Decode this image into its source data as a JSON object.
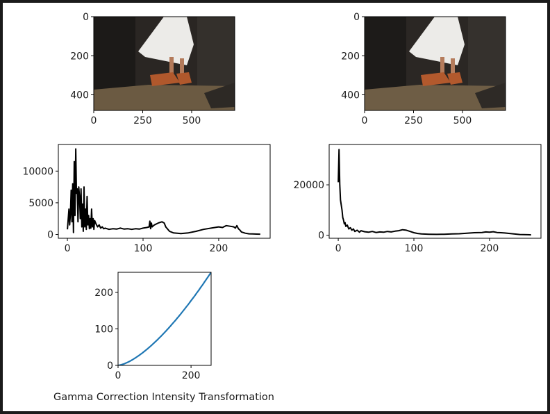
{
  "figure": {
    "caption": "Gamma Correction Intensity Transformation"
  },
  "colors": {
    "histogram_line": "#000000",
    "curve_line": "#1f77b4",
    "axes": "#000000",
    "photo_rock": "#2a2623",
    "photo_dress": "#ecebe8",
    "photo_sand": "#6b5a42",
    "photo_shoe": "#b0582c"
  },
  "chart_data": [
    {
      "type": "image",
      "x_ticks": [
        "0",
        "250",
        "500"
      ],
      "y_ticks": [
        "0",
        "200",
        "400"
      ],
      "xlim": [
        0,
        720
      ],
      "ylim": [
        480,
        0
      ]
    },
    {
      "type": "image",
      "x_ticks": [
        "0",
        "250",
        "500"
      ],
      "y_ticks": [
        "0",
        "200",
        "400"
      ],
      "xlim": [
        0,
        720
      ],
      "ylim": [
        480,
        0
      ]
    },
    {
      "type": "line",
      "xlim": [
        -12,
        268
      ],
      "ylim": [
        -600,
        14200
      ],
      "x_ticks": [
        0,
        100,
        200
      ],
      "y_ticks": [
        0,
        5000,
        10000
      ],
      "x_tick_labels": [
        "0",
        "100",
        "200"
      ],
      "y_tick_labels": [
        "0",
        "5000",
        "10000"
      ],
      "x": [
        0,
        2,
        3,
        4,
        5,
        6,
        7,
        8,
        9,
        10,
        11,
        12,
        13,
        14,
        15,
        16,
        17,
        18,
        19,
        20,
        21,
        22,
        23,
        24,
        25,
        26,
        27,
        28,
        29,
        30,
        31,
        32,
        33,
        34,
        35,
        36,
        38,
        40,
        42,
        44,
        46,
        48,
        50,
        55,
        60,
        65,
        70,
        75,
        80,
        85,
        90,
        95,
        100,
        105,
        108,
        109,
        110,
        111,
        112,
        115,
        120,
        125,
        128,
        130,
        135,
        140,
        150,
        160,
        170,
        180,
        190,
        200,
        205,
        210,
        215,
        220,
        222,
        224,
        226,
        228,
        230,
        235,
        240,
        245,
        250,
        255
      ],
      "y": [
        800,
        4000,
        1500,
        3200,
        7000,
        2000,
        8000,
        300,
        11500,
        3000,
        13500,
        6500,
        7200,
        2000,
        7500,
        6000,
        2500,
        7200,
        1200,
        4800,
        500,
        7500,
        1200,
        4000,
        800,
        6000,
        1500,
        3000,
        900,
        2500,
        1000,
        4000,
        1200,
        2500,
        800,
        2200,
        1600,
        1200,
        1500,
        1000,
        1200,
        900,
        1000,
        800,
        900,
        850,
        1000,
        850,
        900,
        800,
        900,
        850,
        1000,
        1100,
        1200,
        2100,
        900,
        1800,
        1200,
        1500,
        1800,
        2000,
        1800,
        1200,
        500,
        250,
        150,
        250,
        500,
        800,
        1000,
        1200,
        1100,
        1400,
        1300,
        1200,
        1000,
        1400,
        900,
        700,
        400,
        200,
        100,
        80,
        60,
        50
      ]
    },
    {
      "type": "line",
      "xlim": [
        -12,
        268
      ],
      "ylim": [
        -1200,
        36000
      ],
      "x_ticks": [
        0,
        100,
        200
      ],
      "y_ticks": [
        0,
        20000
      ],
      "x_tick_labels": [
        "0",
        "100",
        "200"
      ],
      "y_tick_labels": [
        "0",
        "20000"
      ],
      "x": [
        0,
        1,
        2,
        3,
        4,
        5,
        6,
        7,
        8,
        9,
        10,
        12,
        14,
        16,
        18,
        20,
        22,
        25,
        28,
        30,
        35,
        40,
        45,
        50,
        55,
        60,
        65,
        70,
        75,
        80,
        85,
        90,
        95,
        100,
        105,
        110,
        120,
        130,
        140,
        150,
        160,
        170,
        180,
        190,
        195,
        200,
        205,
        210,
        215,
        220,
        230,
        240,
        250,
        255
      ],
      "y": [
        21000,
        34000,
        20000,
        14000,
        12000,
        10000,
        7000,
        6000,
        4500,
        5000,
        3500,
        4000,
        2500,
        3000,
        2000,
        2500,
        1500,
        2000,
        1200,
        1800,
        1400,
        1200,
        1500,
        1100,
        1300,
        1200,
        1500,
        1300,
        1600,
        1800,
        2200,
        2000,
        1500,
        1000,
        700,
        500,
        400,
        350,
        400,
        500,
        600,
        800,
        1000,
        1100,
        1300,
        1200,
        1400,
        1100,
        1000,
        900,
        600,
        300,
        200,
        150
      ]
    },
    {
      "type": "line",
      "title": "Gamma Correction Intensity Transformation",
      "gamma": 1.5,
      "xlim": [
        0,
        255
      ],
      "ylim": [
        0,
        255
      ],
      "x_ticks": [
        0,
        200
      ],
      "y_ticks": [
        0,
        100,
        200
      ],
      "x_tick_labels": [
        "0",
        "200"
      ],
      "y_tick_labels": [
        "0",
        "100",
        "200"
      ]
    }
  ]
}
